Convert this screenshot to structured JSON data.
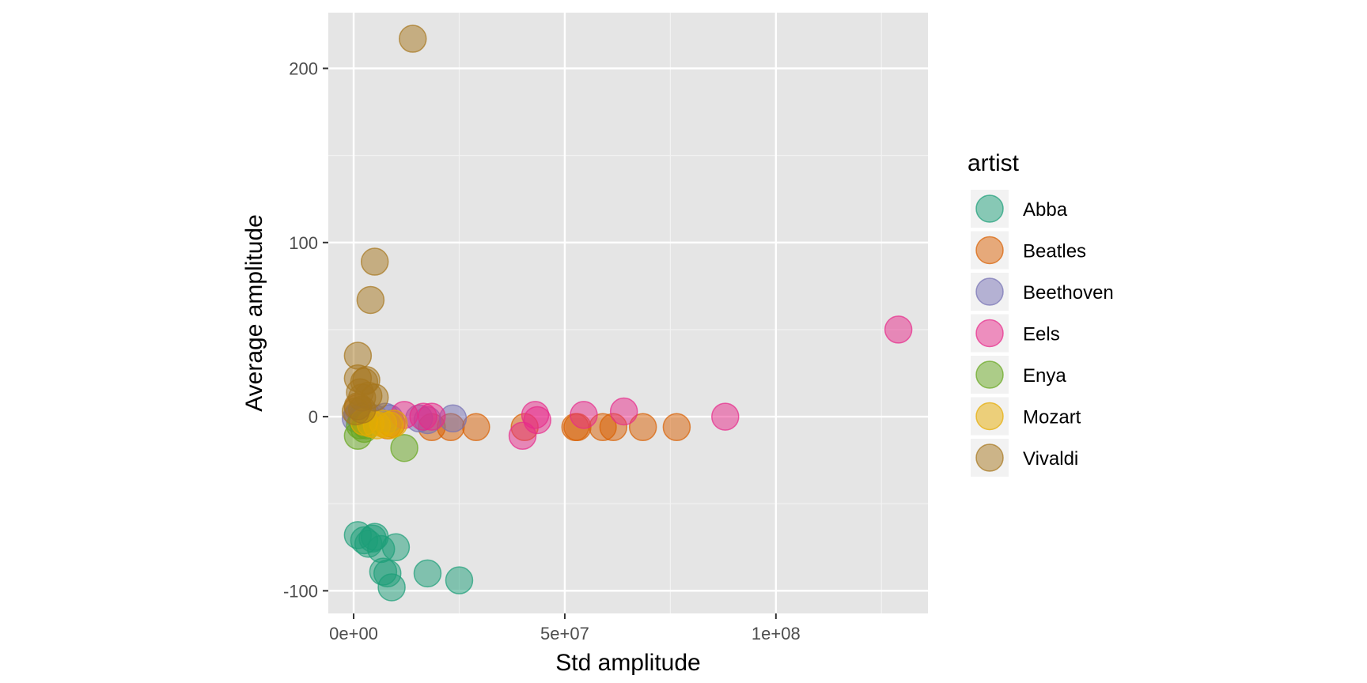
{
  "chart_data": {
    "type": "scatter",
    "xlabel": "Std amplitude",
    "ylabel": "Average amplitude",
    "xlim": [
      -6000000,
      136000000
    ],
    "ylim": [
      -113,
      232
    ],
    "x_ticks": [
      {
        "value": 0,
        "label": "0e+00"
      },
      {
        "value": 50000000,
        "label": "5e+07"
      },
      {
        "value": 100000000,
        "label": "1e+08"
      }
    ],
    "x_minor_ticks": [
      25000000,
      75000000,
      125000000
    ],
    "y_ticks": [
      {
        "value": -100,
        "label": "-100"
      },
      {
        "value": 0,
        "label": "0"
      },
      {
        "value": 100,
        "label": "100"
      },
      {
        "value": 200,
        "label": "200"
      }
    ],
    "y_minor_ticks": [
      -50,
      50,
      150
    ],
    "grid": true,
    "legend_title": "artist",
    "legend_position": "right",
    "series": [
      {
        "name": "Abba",
        "color": "#1B9E77",
        "points": [
          [
            1000000,
            -68
          ],
          [
            3500000,
            -73
          ],
          [
            4500000,
            -70
          ],
          [
            5000000,
            -69
          ],
          [
            6500000,
            -76
          ],
          [
            7000000,
            -89
          ],
          [
            8000000,
            -90
          ],
          [
            9000000,
            -98
          ],
          [
            10000000,
            -75
          ],
          [
            17500000,
            -90
          ],
          [
            25000000,
            -94
          ],
          [
            2500000,
            -71
          ]
        ]
      },
      {
        "name": "Beatles",
        "color": "#D95F02",
        "points": [
          [
            1000000,
            5
          ],
          [
            2000000,
            -2
          ],
          [
            8000000,
            -5
          ],
          [
            9000000,
            -4
          ],
          [
            18500000,
            -6
          ],
          [
            23000000,
            -6
          ],
          [
            29000000,
            -6
          ],
          [
            40500000,
            -6
          ],
          [
            52500000,
            -6
          ],
          [
            53000000,
            -6
          ],
          [
            59000000,
            -6
          ],
          [
            61500000,
            -6
          ],
          [
            68500000,
            -6
          ],
          [
            76500000,
            -6
          ]
        ]
      },
      {
        "name": "Beethoven",
        "color": "#7570B3",
        "points": [
          [
            500000,
            -1
          ],
          [
            1000000,
            1
          ],
          [
            2000000,
            0
          ],
          [
            3000000,
            1
          ],
          [
            5000000,
            -1
          ],
          [
            7500000,
            0
          ],
          [
            8500000,
            -1
          ],
          [
            15500000,
            -1
          ],
          [
            17500000,
            -2
          ],
          [
            23500000,
            -1
          ]
        ]
      },
      {
        "name": "Eels",
        "color": "#E7298A",
        "points": [
          [
            12000000,
            1
          ],
          [
            16500000,
            0
          ],
          [
            18500000,
            0
          ],
          [
            40000000,
            -11
          ],
          [
            43000000,
            1
          ],
          [
            43500000,
            -2
          ],
          [
            54500000,
            1
          ],
          [
            64000000,
            3
          ],
          [
            88000000,
            0
          ],
          [
            129000000,
            50
          ]
        ]
      },
      {
        "name": "Enya",
        "color": "#66A61E",
        "points": [
          [
            1000000,
            -11
          ],
          [
            1500000,
            -5
          ],
          [
            2500000,
            -7
          ],
          [
            3000000,
            -5
          ],
          [
            12000000,
            -18
          ]
        ]
      },
      {
        "name": "Mozart",
        "color": "#E6AB02",
        "points": [
          [
            2500000,
            -3
          ],
          [
            4000000,
            -4
          ],
          [
            5500000,
            -5
          ],
          [
            7000000,
            -4
          ],
          [
            8500000,
            -5
          ],
          [
            9500000,
            -4
          ]
        ]
      },
      {
        "name": "Vivaldi",
        "color": "#A6761D",
        "points": [
          [
            14000000,
            217
          ],
          [
            5000000,
            89
          ],
          [
            4000000,
            67
          ],
          [
            1000000,
            35
          ],
          [
            1000000,
            22
          ],
          [
            2500000,
            20
          ],
          [
            3000000,
            21
          ],
          [
            1500000,
            14
          ],
          [
            2000000,
            11
          ],
          [
            3500000,
            12
          ],
          [
            5000000,
            11
          ],
          [
            1000000,
            6
          ],
          [
            2000000,
            4
          ],
          [
            500000,
            3
          ]
        ]
      }
    ]
  }
}
